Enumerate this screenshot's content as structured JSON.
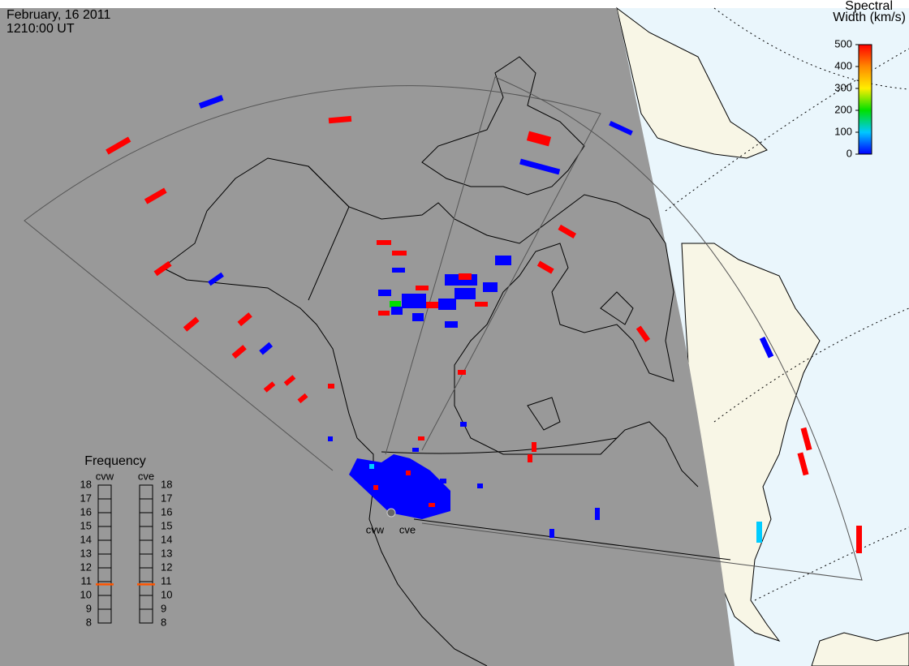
{
  "header": {
    "date": "February, 16 2011",
    "time": "1210:00 UT"
  },
  "colorbar": {
    "title": [
      "Spectral",
      "Width (km/s)"
    ],
    "range": [
      0,
      500
    ],
    "ticks": [
      0,
      100,
      200,
      300,
      400,
      500
    ]
  },
  "frequency_panel": {
    "title": "Frequency",
    "range": [
      8,
      18
    ],
    "ticks": [
      8,
      9,
      10,
      11,
      12,
      13,
      14,
      15,
      16,
      17,
      18
    ],
    "radars": [
      {
        "name": "cvw",
        "frequency": 10.8
      },
      {
        "name": "cve",
        "frequency": 10.8
      }
    ]
  },
  "radar_sites": [
    "cvw",
    "cve"
  ]
}
